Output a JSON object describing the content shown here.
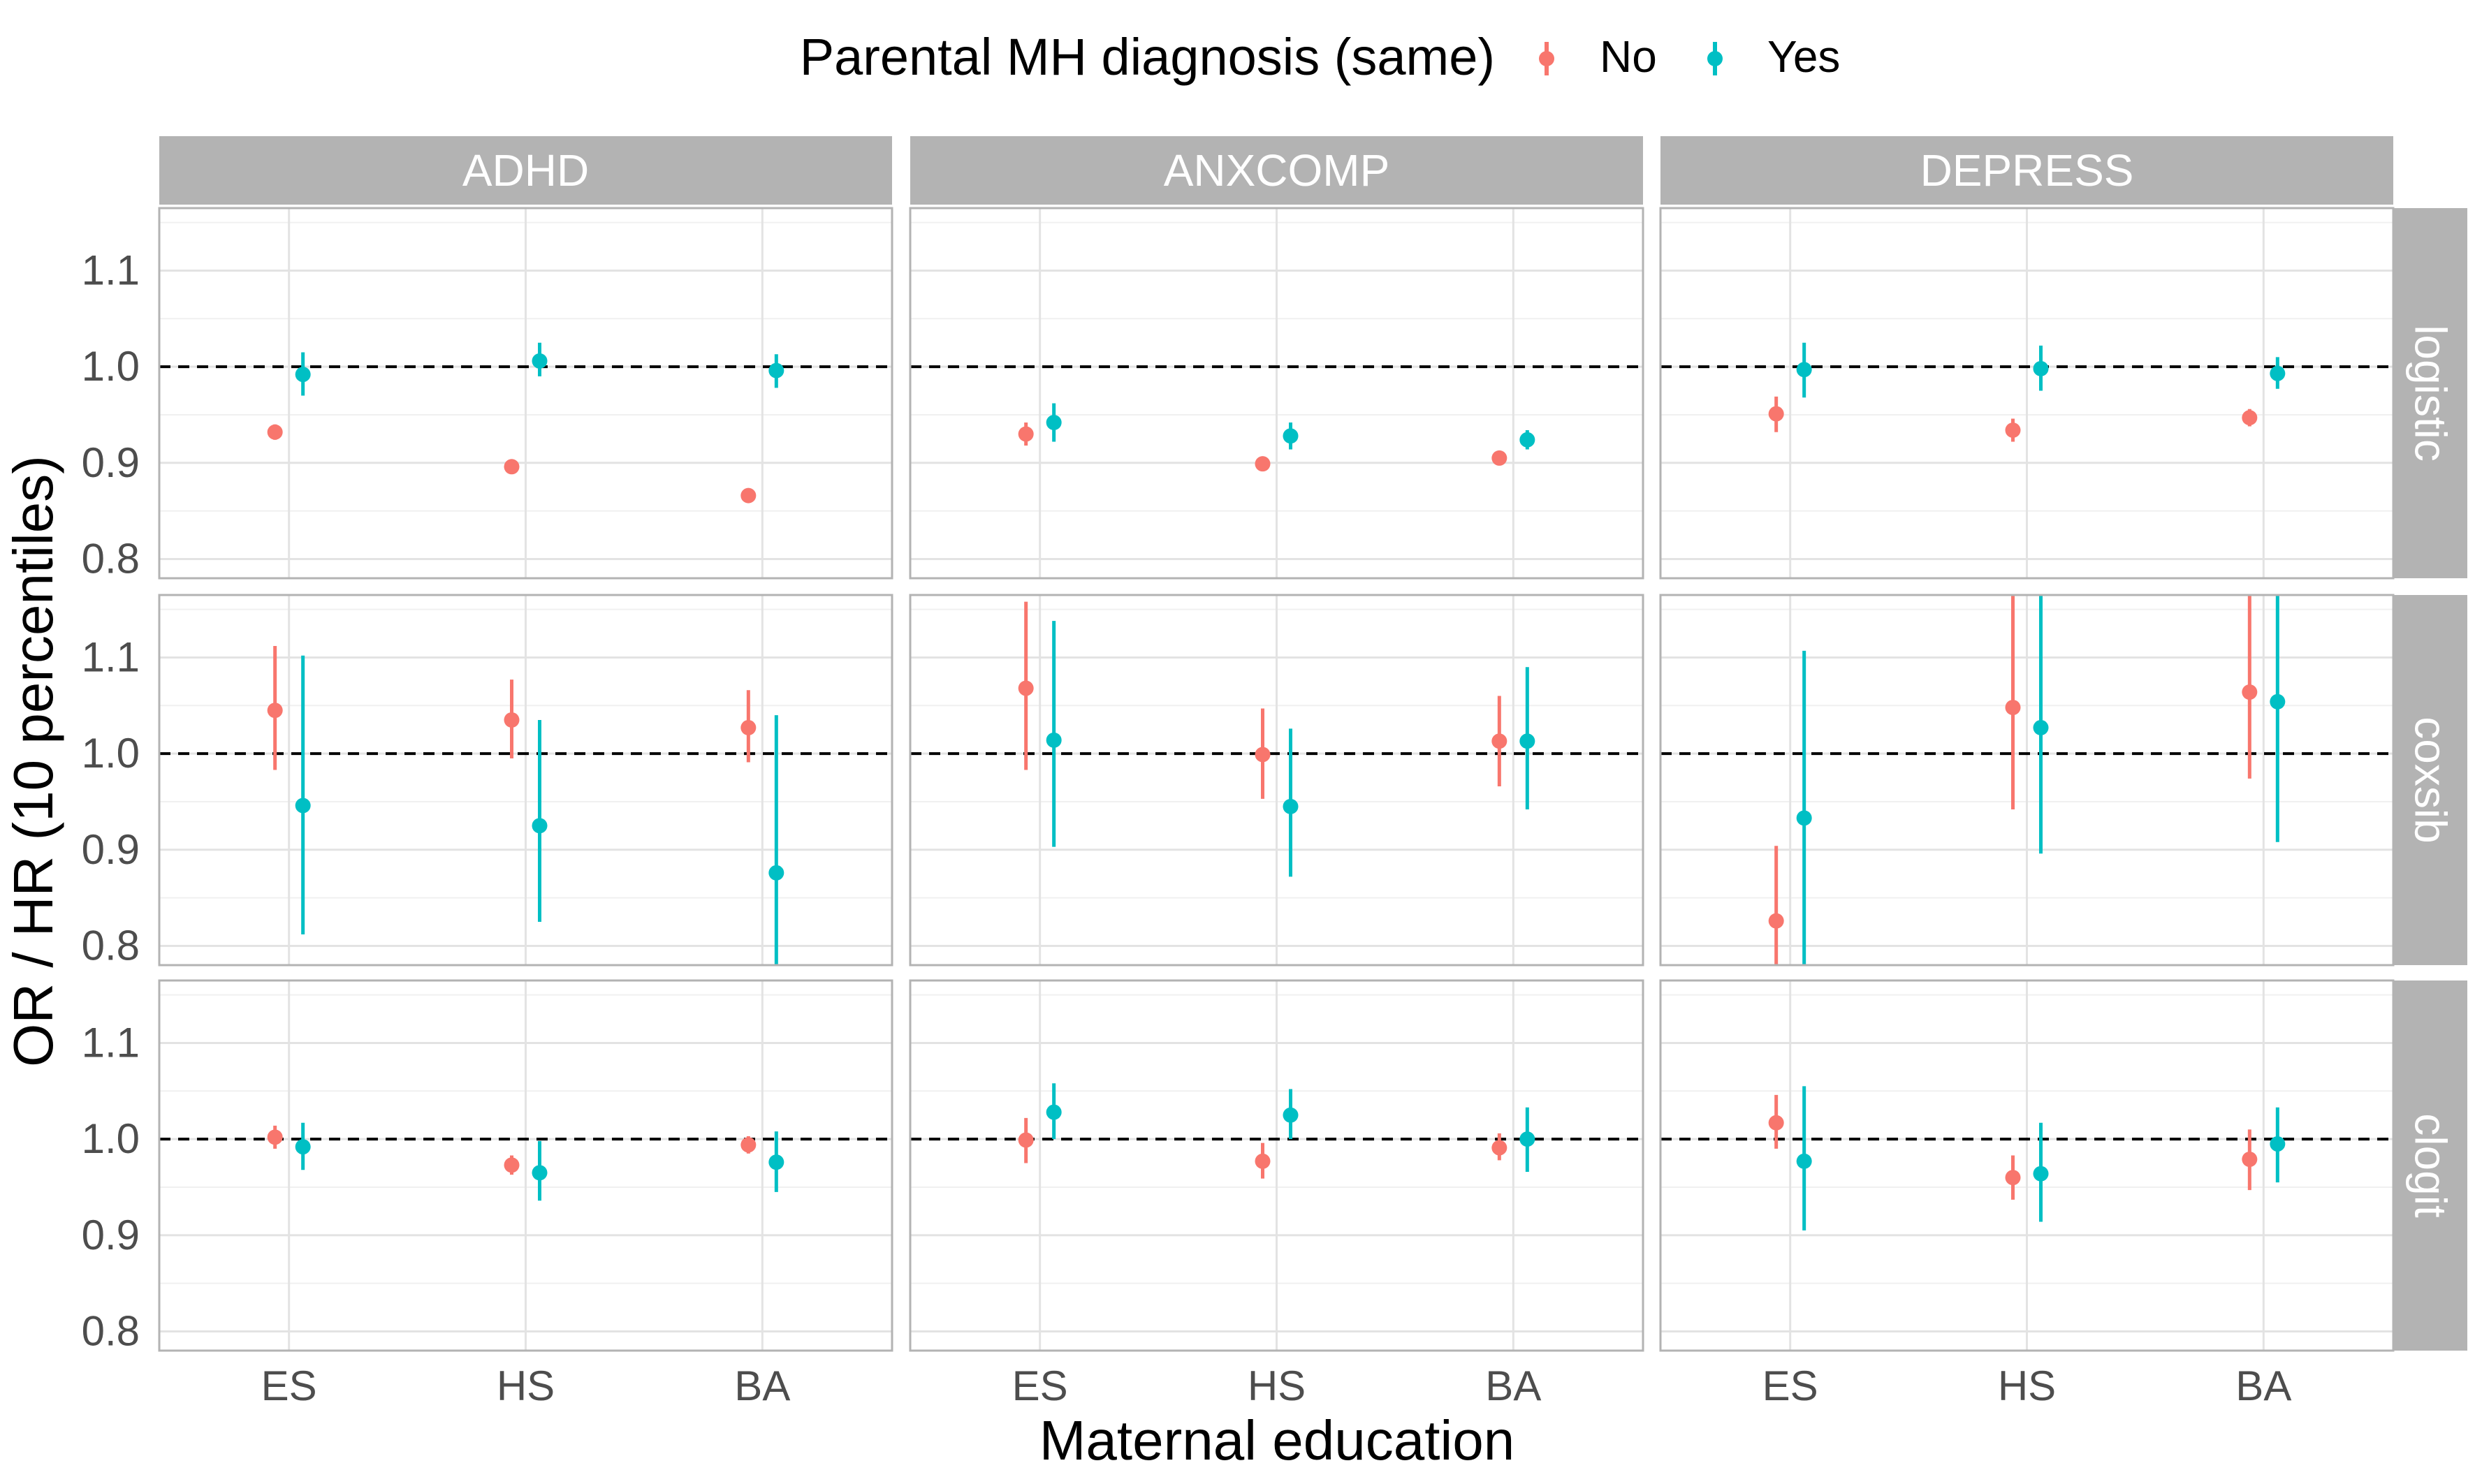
{
  "chart_data": {
    "type": "scatter",
    "subtype": "point-range faceted",
    "xlabel": "Maternal education",
    "ylabel": "OR / HR (10 percentiles)",
    "categories": [
      "ES",
      "HS",
      "BA"
    ],
    "y_ticks": [
      "0.8",
      "0.9",
      "1.0",
      "1.1"
    ],
    "y_tick_values": [
      0.8,
      0.9,
      1.0,
      1.1
    ],
    "ylim": [
      0.78,
      1.165
    ],
    "reference_line": 1.0,
    "grid": true,
    "legend": {
      "title": "Parental MH diagnosis (same)",
      "position": "top",
      "entries": [
        {
          "label": "No",
          "color": "#F8766D"
        },
        {
          "label": "Yes",
          "color": "#00BFC4"
        }
      ]
    },
    "columns": [
      "ADHD",
      "ANXCOMP",
      "DEPRESS"
    ],
    "rows": [
      "logistic",
      "coxsib",
      "clogit"
    ],
    "strip_color": "#B3B3B3",
    "panels": [
      {
        "row": "logistic",
        "col": "ADHD",
        "no": [
          [
            0.932,
            0.924,
            0.94
          ],
          [
            0.896,
            0.892,
            0.9
          ],
          [
            0.866,
            0.862,
            0.87
          ]
        ],
        "yes": [
          [
            0.992,
            0.97,
            1.015
          ],
          [
            1.006,
            0.99,
            1.025
          ],
          [
            0.996,
            0.978,
            1.013
          ]
        ]
      },
      {
        "row": "logistic",
        "col": "ANXCOMP",
        "no": [
          [
            0.93,
            0.918,
            0.942
          ],
          [
            0.899,
            0.892,
            0.906
          ],
          [
            0.905,
            0.9,
            0.91
          ]
        ],
        "yes": [
          [
            0.942,
            0.922,
            0.962
          ],
          [
            0.928,
            0.914,
            0.942
          ],
          [
            0.924,
            0.914,
            0.934
          ]
        ]
      },
      {
        "row": "logistic",
        "col": "DEPRESS",
        "no": [
          [
            0.951,
            0.932,
            0.969
          ],
          [
            0.934,
            0.922,
            0.946
          ],
          [
            0.947,
            0.938,
            0.956
          ]
        ],
        "yes": [
          [
            0.997,
            0.968,
            1.025
          ],
          [
            0.998,
            0.975,
            1.022
          ],
          [
            0.993,
            0.977,
            1.01
          ]
        ]
      },
      {
        "row": "coxsib",
        "col": "ADHD",
        "no": [
          [
            1.045,
            0.983,
            1.112
          ],
          [
            1.035,
            0.995,
            1.077
          ],
          [
            1.027,
            0.991,
            1.066
          ]
        ],
        "yes": [
          [
            0.946,
            0.812,
            1.102
          ],
          [
            0.925,
            0.825,
            1.035
          ],
          [
            0.876,
            0.78,
            1.04
          ]
        ]
      },
      {
        "row": "coxsib",
        "col": "ANXCOMP",
        "no": [
          [
            1.068,
            0.983,
            1.158
          ],
          [
            0.999,
            0.953,
            1.047
          ],
          [
            1.013,
            0.966,
            1.06
          ]
        ],
        "yes": [
          [
            1.014,
            0.903,
            1.138
          ],
          [
            0.945,
            0.872,
            1.026
          ],
          [
            1.013,
            0.942,
            1.09
          ]
        ]
      },
      {
        "row": "coxsib",
        "col": "DEPRESS",
        "no": [
          [
            0.826,
            0.78,
            0.904
          ],
          [
            1.048,
            0.942,
            1.165
          ],
          [
            1.064,
            0.974,
            1.165
          ]
        ],
        "yes": [
          [
            0.933,
            0.78,
            1.107
          ],
          [
            1.027,
            0.896,
            1.165
          ],
          [
            1.054,
            0.908,
            1.165
          ]
        ]
      },
      {
        "row": "clogit",
        "col": "ADHD",
        "no": [
          [
            1.002,
            0.99,
            1.014
          ],
          [
            0.973,
            0.963,
            0.983
          ],
          [
            0.994,
            0.985,
            1.003
          ]
        ],
        "yes": [
          [
            0.992,
            0.968,
            1.017
          ],
          [
            0.965,
            0.936,
            0.998
          ],
          [
            0.976,
            0.945,
            1.008
          ]
        ]
      },
      {
        "row": "clogit",
        "col": "ANXCOMP",
        "no": [
          [
            0.999,
            0.975,
            1.022
          ],
          [
            0.977,
            0.959,
            0.996
          ],
          [
            0.991,
            0.978,
            1.006
          ]
        ],
        "yes": [
          [
            1.028,
            1.0,
            1.058
          ],
          [
            1.025,
            1.0,
            1.052
          ],
          [
            1.0,
            0.966,
            1.033
          ]
        ]
      },
      {
        "row": "clogit",
        "col": "DEPRESS",
        "no": [
          [
            1.017,
            0.99,
            1.046
          ],
          [
            0.96,
            0.937,
            0.983
          ],
          [
            0.979,
            0.947,
            1.01
          ]
        ],
        "yes": [
          [
            0.977,
            0.905,
            1.055
          ],
          [
            0.964,
            0.914,
            1.017
          ],
          [
            0.995,
            0.955,
            1.033
          ]
        ]
      }
    ]
  }
}
